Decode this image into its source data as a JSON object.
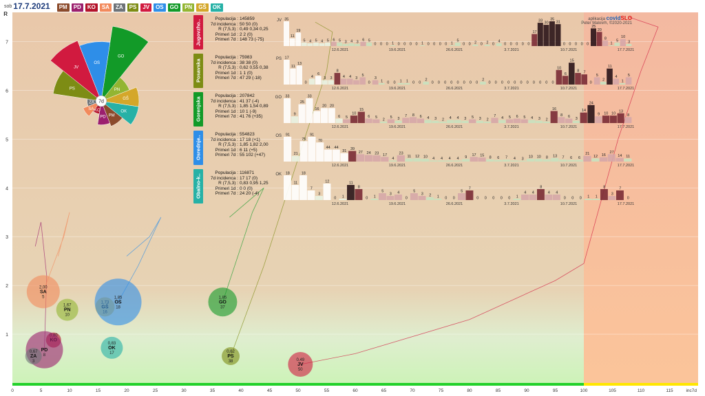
{
  "header": {
    "day": "sob",
    "date": "17.7.2021",
    "regions": [
      {
        "code": "PM",
        "color": "#8b4a2b"
      },
      {
        "code": "PD",
        "color": "#9b1f6e"
      },
      {
        "code": "KO",
        "color": "#b3122a"
      },
      {
        "code": "SA",
        "color": "#f28a5c"
      },
      {
        "code": "ZA",
        "color": "#6e7378"
      },
      {
        "code": "PS",
        "color": "#7d8c14"
      },
      {
        "code": "JV",
        "color": "#d11a3f"
      },
      {
        "code": "OS",
        "color": "#2e8ee8"
      },
      {
        "code": "GO",
        "color": "#129a28"
      },
      {
        "code": "PN",
        "color": "#93b532"
      },
      {
        "code": "GŠ",
        "color": "#d4a72a"
      },
      {
        "code": "OK",
        "color": "#26b1a6"
      }
    ]
  },
  "credit": {
    "line1_prefix": "aplikacija",
    "brand1": "covid",
    "brand2": "SLO",
    "line2": "Peter Malovrh, ©2020-2021"
  },
  "panels": [
    {
      "title": "Jugovzho..",
      "color": "#d11a3f",
      "code": "JV",
      "stats": [
        [
          "Populacija",
          "145859"
        ],
        [
          "7d incidenca",
          "50 50 (0)"
        ],
        [
          "R (7,5,3)",
          "0,49 0,34 0,25"
        ],
        [
          "Primeri 1d",
          "2 2 (0)"
        ],
        [
          "Primeri 7d",
          "148 73 (-75)"
        ]
      ],
      "bars": [
        35,
        11,
        19,
        5,
        4,
        5,
        4,
        5,
        6,
        5,
        3,
        4,
        3,
        6,
        5,
        0,
        0,
        0,
        1,
        0,
        0,
        0,
        0,
        1,
        0,
        0,
        0,
        0,
        1,
        5,
        0,
        0,
        2,
        0,
        2,
        0,
        4,
        0,
        0,
        0,
        0,
        0,
        17,
        33,
        30,
        35,
        31,
        0,
        0,
        0,
        0,
        0,
        25,
        20,
        8,
        1,
        5,
        10,
        3
      ],
      "dates": [
        "12.6.2021",
        "19.6.2021",
        "26.6.2021",
        "3.7.2021",
        "10.7.2021",
        "17.7.2021"
      ]
    },
    {
      "title": "Posavska",
      "color": "#7d8c14",
      "code": "PS",
      "stats": [
        [
          "Populacija",
          "75983"
        ],
        [
          "7d incidenca",
          "38 38 (0)"
        ],
        [
          "R (7,5,3)",
          "0,62 0,55 0,38"
        ],
        [
          "Primeri 1d",
          "1 1 (0)"
        ],
        [
          "Primeri 7d",
          "47 29 (-18)"
        ]
      ],
      "bars": [
        17,
        11,
        13,
        0,
        4,
        6,
        3,
        3,
        8,
        4,
        4,
        3,
        5,
        0,
        3,
        1,
        0,
        0,
        1,
        1,
        0,
        0,
        2,
        0,
        0,
        0,
        0,
        0,
        0,
        0,
        0,
        2,
        0,
        0,
        0,
        0,
        0,
        0,
        0,
        0,
        0,
        0,
        0,
        10,
        6,
        15,
        8,
        7,
        0,
        5,
        2,
        11,
        4,
        1,
        5
      ],
      "dates": [
        "12.6.2021",
        "19.6.2021",
        "26.6.2021",
        "3.7.2021",
        "10.7.2021",
        "17.7.2021"
      ]
    },
    {
      "title": "Gorenjska",
      "color": "#129a28",
      "code": "GO",
      "stats": [
        [
          "Populacija",
          "207842"
        ],
        [
          "7d incidenca",
          "41 37 (-4)"
        ],
        [
          "R (7,5,3)",
          "1,85 1,54 0,89"
        ],
        [
          "Primeri 1d",
          "10 1 (-9)"
        ],
        [
          "Primeri 7d",
          "41 76 (+35)"
        ]
      ],
      "bars": [
        33,
        9,
        25,
        33,
        16,
        20,
        20,
        6,
        5,
        10,
        15,
        6,
        5,
        2,
        5,
        3,
        7,
        8,
        6,
        4,
        3,
        2,
        4,
        4,
        3,
        5,
        3,
        2,
        7,
        4,
        5,
        6,
        5,
        4,
        3,
        2,
        16,
        8,
        6,
        3,
        14,
        24,
        9,
        10,
        10,
        13,
        8
      ],
      "dates": [
        "12.6.2021",
        "19.6.2021",
        "26.6.2021",
        "3.7.2021",
        "10.7.2021",
        "17.7.2021"
      ]
    },
    {
      "title": "Osrednje..",
      "color": "#2e8ee8",
      "code": "OS",
      "stats": [
        [
          "Populacija",
          "554823"
        ],
        [
          "7d incidenca",
          "17 18 (+1)"
        ],
        [
          "R (7,5,3)",
          "1,85 1,82 2,00"
        ],
        [
          "Primeri 1d",
          "6 11 (+5)"
        ],
        [
          "Primeri 7d",
          "55 102 (+47)"
        ]
      ],
      "bars": [
        91,
        21,
        75,
        91,
        70,
        44,
        44,
        31,
        39,
        27,
        24,
        23,
        17,
        4,
        23,
        11,
        12,
        10,
        4,
        4,
        4,
        4,
        9,
        17,
        15,
        8,
        6,
        7,
        4,
        3,
        10,
        10,
        8,
        13,
        7,
        6,
        6,
        21,
        12,
        16,
        27,
        14,
        11
      ],
      "dates": [
        "12.6.2021",
        "19.6.2021",
        "26.6.2021",
        "3.7.2021",
        "10.7.2021",
        "17.7.2021"
      ]
    },
    {
      "title": "Obalno-k..",
      "color": "#26b1a6",
      "code": "OK",
      "stats": [
        [
          "Populacija",
          "116871"
        ],
        [
          "7d incidenca",
          "17 17 (0)"
        ],
        [
          "R (7,5,3)",
          "0,83 0,95 1,25"
        ],
        [
          "Primeri 1d",
          "0 0 (0)"
        ],
        [
          "Primeri 7d",
          "24 20 (-4)"
        ]
      ],
      "bars": [
        18,
        11,
        18,
        7,
        3,
        12,
        0,
        1,
        11,
        8,
        0,
        1,
        5,
        3,
        4,
        0,
        5,
        3,
        2,
        1,
        0,
        0,
        5,
        7,
        0,
        0,
        0,
        0,
        0,
        1,
        4,
        4,
        8,
        4,
        4,
        0,
        0,
        0,
        1,
        1,
        8,
        3,
        7,
        0
      ],
      "dates": [
        "12.6.2021",
        "19.6.2021",
        "26.6.2021",
        "3.7.2021",
        "10.7.2021",
        "17.7.2021"
      ]
    }
  ],
  "rose": {
    "center_label": "7d",
    "slices": [
      {
        "code": "GO",
        "value": 7.0,
        "color": "#129a28"
      },
      {
        "code": "PN",
        "value": 2.8,
        "color": "#93b532"
      },
      {
        "code": "GŠ",
        "value": 3.5,
        "color": "#d4a72a"
      },
      {
        "code": "OK",
        "value": 3.5,
        "color": "#26b1a6"
      },
      {
        "code": "PM",
        "value": 2.5,
        "color": "#8b4a2b"
      },
      {
        "code": "PD",
        "value": 2.2,
        "color": "#9b1f6e"
      },
      {
        "code": "KO",
        "value": 1.2,
        "color": "#b3122a"
      },
      {
        "code": "SA",
        "value": 1.8,
        "color": "#f28a5c"
      },
      {
        "code": "ZA",
        "value": 1.3,
        "color": "#6e7378"
      },
      {
        "code": "PS",
        "value": 4.5,
        "color": "#7d8c14"
      },
      {
        "code": "JV",
        "value": 6.0,
        "color": "#d11a3f"
      },
      {
        "code": "OS",
        "value": 5.5,
        "color": "#2e8ee8"
      }
    ]
  },
  "chart_data": {
    "type": "scatter",
    "xlabel": "inc7d",
    "ylabel": "R",
    "xlim": [
      0,
      120
    ],
    "ylim": [
      0,
      7.6
    ],
    "xticks": [
      0,
      5,
      10,
      15,
      20,
      25,
      30,
      35,
      40,
      45,
      50,
      55,
      60,
      65,
      70,
      75,
      80,
      85,
      90,
      95,
      100,
      105,
      110,
      115
    ],
    "yticks": [
      1,
      2,
      3,
      4,
      5,
      6,
      7
    ],
    "threshold_x": 100,
    "bubbles": [
      {
        "code": "SA",
        "r_label": "2,00",
        "inc_label": "5",
        "x": 5.4,
        "y": 1.87,
        "size": 24,
        "color": "#f28a5c"
      },
      {
        "code": "PN",
        "r_label": "1,67",
        "inc_label": "10",
        "x": 9.6,
        "y": 1.5,
        "size": 16,
        "color": "#93b532"
      },
      {
        "code": "GŠ",
        "r_label": "1,73",
        "inc_label": "16",
        "x": 16.2,
        "y": 1.56,
        "size": 14,
        "color": "#d4a72a"
      },
      {
        "code": "OS",
        "r_label": "1,85",
        "inc_label": "18",
        "x": 18.5,
        "y": 1.66,
        "size": 34,
        "color": "#2e8ee8"
      },
      {
        "code": "GO",
        "r_label": "1,85",
        "inc_label": "37",
        "x": 36.8,
        "y": 1.66,
        "size": 21,
        "color": "#129a28"
      },
      {
        "code": "KO",
        "r_label": "0,80",
        "inc_label": "",
        "x": 7.2,
        "y": 0.88,
        "size": 11,
        "color": "#b3122a"
      },
      {
        "code": "PD",
        "r_label": "",
        "inc_label": "8",
        "x": 5.6,
        "y": 0.68,
        "size": 27,
        "color": "#9b1f6e"
      },
      {
        "code": "ZA",
        "r_label": "0,67",
        "inc_label": "3",
        "x": 3.7,
        "y": 0.55,
        "size": 12,
        "color": "#6e7378"
      },
      {
        "code": "OK",
        "r_label": "0,83",
        "inc_label": "17",
        "x": 17.4,
        "y": 0.72,
        "size": 16,
        "color": "#26b1a6"
      },
      {
        "code": "PS",
        "r_label": "0,62",
        "inc_label": "38",
        "x": 38.2,
        "y": 0.55,
        "size": 13,
        "color": "#7d8c14"
      },
      {
        "code": "JV",
        "r_label": "0,49",
        "inc_label": "50",
        "x": 50.4,
        "y": 0.38,
        "size": 18,
        "color": "#d11a3f"
      }
    ],
    "trails": [
      {
        "code": "JV",
        "color": "#d11a3f",
        "points": [
          [
            50.4,
            0.38
          ],
          [
            60,
            0.6
          ],
          [
            80,
            1.3
          ],
          [
            95,
            2.1
          ],
          [
            100,
            2.45
          ],
          [
            106,
            5.0
          ],
          [
            110,
            6.4
          ],
          [
            113,
            7.3
          ],
          [
            108,
            7.5
          ]
        ]
      },
      {
        "code": "PS",
        "color": "#7d8c14",
        "points": [
          [
            38.2,
            0.55
          ],
          [
            44,
            2.4
          ],
          [
            50,
            4.6
          ],
          [
            55,
            6.4
          ],
          [
            56,
            7.2
          ],
          [
            53,
            7.4
          ]
        ]
      },
      {
        "code": "GO",
        "color": "#129a28",
        "points": [
          [
            36.8,
            1.66
          ],
          [
            42,
            3.5
          ],
          [
            44,
            4.0
          ],
          [
            40,
            3.6
          ],
          [
            38,
            3.4
          ]
        ]
      },
      {
        "code": "OS",
        "color": "#2e8ee8",
        "points": [
          [
            18.5,
            1.66
          ],
          [
            22,
            2.4
          ],
          [
            26,
            3.4
          ],
          [
            24,
            3.0
          ],
          [
            20,
            2.6
          ]
        ]
      },
      {
        "code": "PD",
        "color": "#9b1f6e",
        "points": [
          [
            5.6,
            0.68
          ],
          [
            6,
            2.2
          ],
          [
            5,
            3.3
          ],
          [
            4,
            2.8
          ]
        ]
      },
      {
        "code": "SA",
        "color": "#f28a5c",
        "points": [
          [
            5.4,
            1.87
          ],
          [
            9,
            3.0
          ],
          [
            10,
            3.5
          ],
          [
            8,
            2.6
          ]
        ]
      }
    ]
  }
}
